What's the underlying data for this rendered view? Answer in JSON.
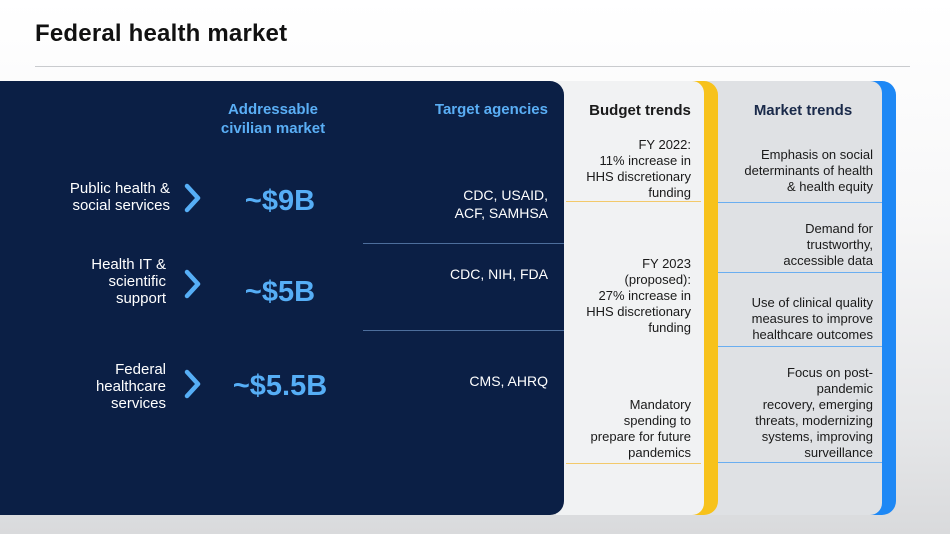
{
  "title": "Federal health market",
  "colors": {
    "navy": "#0b1f45",
    "accent_blue": "#56aef6",
    "accent_yellow": "#f7c21b",
    "market_blue": "#1e88f5"
  },
  "headers": {
    "addressable": [
      "Addressable",
      "civilian market"
    ],
    "target": "Target agencies",
    "budget": "Budget trends",
    "market": "Market trends"
  },
  "segments": [
    {
      "label": [
        "Public health &",
        "social services"
      ],
      "value": "~$9B",
      "agencies": [
        "CDC, USAID,",
        "ACF, SAMHSA"
      ],
      "icon": "chevron-right-icon"
    },
    {
      "label": [
        "Health IT &",
        "scientific",
        "support"
      ],
      "value": "~$5B",
      "agencies": [
        "CDC, NIH, FDA"
      ],
      "icon": "chevron-right-icon"
    },
    {
      "label": [
        "Federal",
        "healthcare",
        "services"
      ],
      "value": "~$5.5B",
      "agencies": [
        "CMS, AHRQ"
      ],
      "icon": "chevron-right-icon"
    }
  ],
  "budget_trends": [
    [
      "FY 2022:",
      "11% increase in",
      "HHS discretionary",
      "funding"
    ],
    [
      "FY 2023",
      "(proposed):",
      "27% increase in",
      "HHS discretionary",
      "funding"
    ],
    [
      "Mandatory",
      "spending to",
      "prepare for future",
      "pandemics"
    ]
  ],
  "market_trends": [
    [
      "Emphasis on social",
      "determinants  of health",
      "& health equity"
    ],
    [
      "Demand for",
      "trustworthy,",
      "accessible data"
    ],
    [
      "Use of clinical quality",
      "measures to improve",
      "healthcare outcomes"
    ],
    [
      "Focus on post-",
      "pandemic",
      "recovery, emerging",
      "threats, modernizing",
      "systems, improving",
      "surveillance"
    ]
  ]
}
